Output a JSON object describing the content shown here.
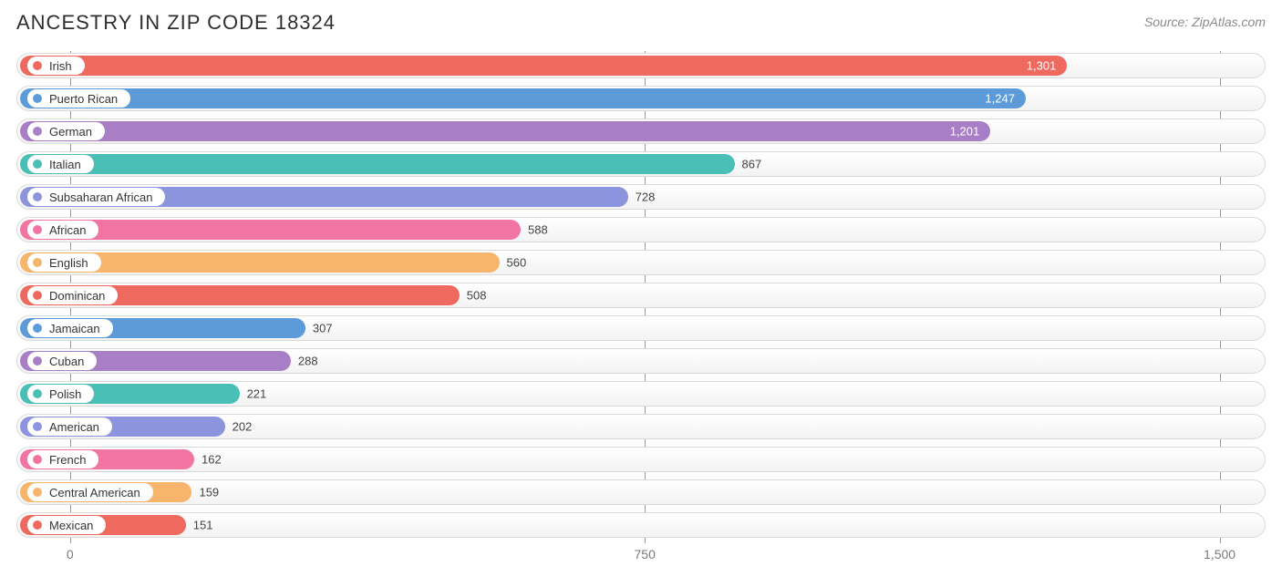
{
  "title": "ANCESTRY IN ZIP CODE 18324",
  "source": "Source: ZipAtlas.com",
  "chart": {
    "type": "bar-horizontal",
    "x_min": -70,
    "x_max": 1560,
    "ticks": [
      {
        "value": 0,
        "label": "0"
      },
      {
        "value": 750,
        "label": "750"
      },
      {
        "value": 1500,
        "label": "1,500"
      }
    ],
    "label_inside_threshold": 1000,
    "track_border": "#d9d9d9",
    "grid_color": "#9a9a9a",
    "background": "#ffffff",
    "title_fontsize": 22,
    "label_fontsize": 13,
    "tick_fontsize": 14,
    "bars": [
      {
        "label": "Irish",
        "value": 1301,
        "display": "1,301",
        "color": "#ee6a5e"
      },
      {
        "label": "Puerto Rican",
        "value": 1247,
        "display": "1,247",
        "color": "#5c9bd7"
      },
      {
        "label": "German",
        "value": 1201,
        "display": "1,201",
        "color": "#a87ec6"
      },
      {
        "label": "Italian",
        "value": 867,
        "display": "867",
        "color": "#49bfb6"
      },
      {
        "label": "Subsaharan African",
        "value": 728,
        "display": "728",
        "color": "#8c94dd"
      },
      {
        "label": "African",
        "value": 588,
        "display": "588",
        "color": "#f175a3"
      },
      {
        "label": "English",
        "value": 560,
        "display": "560",
        "color": "#f6b56a"
      },
      {
        "label": "Dominican",
        "value": 508,
        "display": "508",
        "color": "#ee6a5e"
      },
      {
        "label": "Jamaican",
        "value": 307,
        "display": "307",
        "color": "#5c9bd7"
      },
      {
        "label": "Cuban",
        "value": 288,
        "display": "288",
        "color": "#a87ec6"
      },
      {
        "label": "Polish",
        "value": 221,
        "display": "221",
        "color": "#49bfb6"
      },
      {
        "label": "American",
        "value": 202,
        "display": "202",
        "color": "#8c94dd"
      },
      {
        "label": "French",
        "value": 162,
        "display": "162",
        "color": "#f175a3"
      },
      {
        "label": "Central American",
        "value": 159,
        "display": "159",
        "color": "#f6b56a"
      },
      {
        "label": "Mexican",
        "value": 151,
        "display": "151",
        "color": "#ee6a5e"
      }
    ]
  }
}
